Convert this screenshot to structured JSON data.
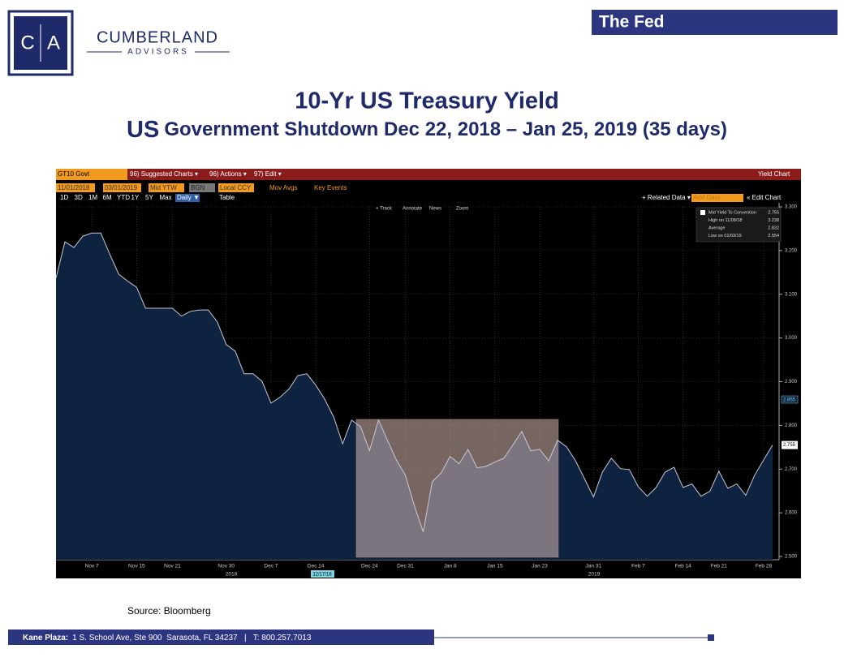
{
  "header": {
    "logo_letters": [
      "C",
      "A"
    ],
    "company": "CUMBERLAND",
    "company_sub": "ADVISORS",
    "badge": "The Fed"
  },
  "chart_data": {
    "type": "area",
    "title": "10-Yr US Treasury Yield",
    "subtitle_prefix": "US",
    "subtitle": "Government Shutdown Dec 22, 2018 – Jan 25, 2019 (35 days)",
    "color": "#c9c9d6",
    "fill": "#0d2340",
    "grid": true,
    "toolbar": {
      "security": "GT10 Govt",
      "menus": [
        "96) Suggested Charts ▾",
        "96) Actions ▾",
        "97) Edit ▾"
      ],
      "right": "Yield Chart",
      "start": "11/01/2018",
      "end": "03/01/2019",
      "field": "Mid YTW",
      "source": "BGN",
      "currency": "Local CCY",
      "options": [
        "Mov Avgs",
        "Key Events"
      ],
      "periods": [
        "1D",
        "3D",
        "1M",
        "6M",
        "YTD",
        "1Y",
        "5Y",
        "Max"
      ],
      "frequency": "Daily ▼",
      "table": "Table",
      "related": "+ Related Data ▾",
      "add": "Add Data",
      "edit": "« Edit Chart",
      "tools": [
        "+ Track",
        "Annotate",
        "News",
        "Zoom"
      ]
    },
    "legend_stats": [
      [
        "Mid Yield To Convention",
        "2.755"
      ],
      [
        "High on 11/08/18",
        "3.238"
      ],
      [
        "Average",
        "2.832"
      ],
      [
        "Low on 01/03/19",
        "2.554"
      ]
    ],
    "tags": [
      "2.855",
      "2.755"
    ],
    "cursor_date": "12/17/18",
    "x_year_labels": [
      "2018",
      "2019"
    ],
    "categories": [
      null,
      null,
      null,
      null,
      "Nov 7",
      null,
      null,
      null,
      null,
      "Nov 15",
      null,
      null,
      null,
      "Nov 21",
      null,
      null,
      null,
      null,
      null,
      "Nov 30",
      null,
      null,
      null,
      null,
      "Dec 7",
      null,
      null,
      null,
      null,
      "Dec 14",
      null,
      null,
      null,
      null,
      null,
      "Dec 24",
      null,
      null,
      null,
      "Dec 31",
      null,
      null,
      null,
      null,
      "Jan 8",
      null,
      null,
      null,
      null,
      "Jan 15",
      null,
      null,
      null,
      null,
      "Jan 23",
      null,
      null,
      null,
      null,
      null,
      "Jan 31",
      null,
      null,
      null,
      null,
      "Feb 7",
      null,
      null,
      null,
      null,
      "Feb 14",
      null,
      null,
      null,
      "Feb 21",
      null,
      null,
      null,
      null,
      "Feb 28",
      null
    ],
    "values": [
      3.137,
      3.22,
      3.207,
      3.233,
      3.24,
      3.24,
      3.192,
      3.146,
      3.13,
      3.116,
      3.068,
      3.068,
      3.068,
      3.068,
      3.05,
      3.061,
      3.064,
      3.064,
      3.037,
      2.985,
      2.97,
      2.918,
      2.918,
      2.901,
      2.851,
      2.864,
      2.883,
      2.914,
      2.918,
      2.892,
      2.86,
      2.819,
      2.758,
      2.812,
      2.797,
      2.742,
      2.812,
      2.766,
      2.721,
      2.686,
      2.617,
      2.556,
      2.671,
      2.691,
      2.729,
      2.712,
      2.745,
      2.703,
      2.706,
      2.716,
      2.725,
      2.755,
      2.786,
      2.742,
      2.745,
      2.719,
      2.766,
      2.751,
      2.719,
      2.678,
      2.636,
      2.693,
      2.725,
      2.701,
      2.699,
      2.66,
      2.638,
      2.658,
      2.693,
      2.704,
      2.658,
      2.666,
      2.638,
      2.649,
      2.695,
      2.656,
      2.666,
      2.64,
      2.686,
      2.721,
      2.755
    ],
    "ylim": [
      2.5,
      3.3
    ],
    "yticks": [
      {
        "value": 2.5,
        "label": "2.500"
      },
      {
        "value": 2.6,
        "label": "2.600"
      },
      {
        "value": 2.7,
        "label": "2.700"
      },
      {
        "value": 2.8,
        "label": "2.800"
      },
      {
        "value": 2.9,
        "label": "2.900"
      },
      {
        "value": 3.0,
        "label": "3.000"
      },
      {
        "value": 3.1,
        "label": "3.100"
      },
      {
        "value": 3.2,
        "label": "3.200"
      },
      {
        "value": 3.3,
        "label": "3.300"
      }
    ]
  },
  "source": "Source: Bloomberg",
  "footer": {
    "label": "Kane Plaza:",
    "address": "1 S. School Ave, Ste 900  Sarasota, FL 34237   |   T: 800.257.7013"
  }
}
